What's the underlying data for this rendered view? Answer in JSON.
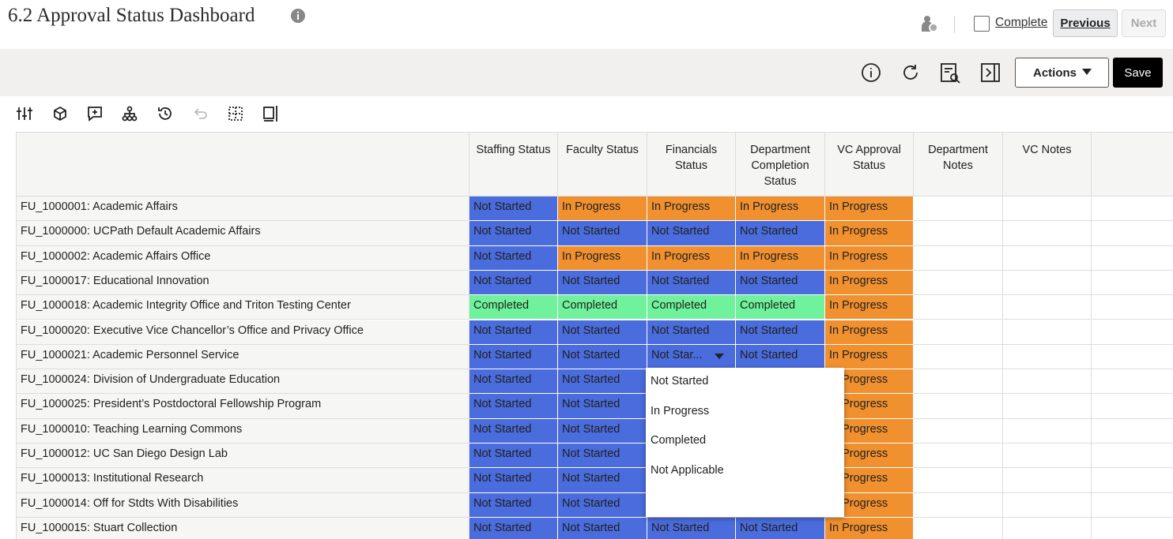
{
  "header": {
    "title": "6.2 Approval Status Dashboard",
    "complete_label": "Complete",
    "previous_button": "Previous",
    "next_button": "Next"
  },
  "toolbar": {
    "actions_button": "Actions",
    "save_button": "Save"
  },
  "status_colors": {
    "Not Started": "#4a6cdc",
    "In Progress": "#f0902e",
    "Completed": "#6ff29b",
    "Not Star...": "#4a6cdc"
  },
  "table": {
    "columns": [
      "Staffing Status",
      "Faculty Status",
      "Financials Status",
      "Department Completion Status",
      "VC Approval Status",
      "Department Notes",
      "VC Notes"
    ],
    "rows": [
      {
        "label": "FU_1000001: Academic Affairs",
        "cells": [
          "Not Started",
          "In Progress",
          "In Progress",
          "In Progress",
          "In Progress"
        ]
      },
      {
        "label": "FU_1000000: UCPath Default Academic Affairs",
        "cells": [
          "Not Started",
          "Not Started",
          "Not Started",
          "Not Started",
          "In Progress"
        ]
      },
      {
        "label": "FU_1000002: Academic Affairs Office",
        "cells": [
          "Not Started",
          "In Progress",
          "In Progress",
          "In Progress",
          "In Progress"
        ]
      },
      {
        "label": "FU_1000017: Educational Innovation",
        "cells": [
          "Not Started",
          "Not Started",
          "Not Started",
          "Not Started",
          "In Progress"
        ]
      },
      {
        "label": "FU_1000018: Academic Integrity Office and Triton Testing Center",
        "cells": [
          "Completed",
          "Completed",
          "Completed",
          "Completed",
          "In Progress"
        ]
      },
      {
        "label": "FU_1000020: Executive Vice Chancellor’s Office and Privacy Office",
        "cells": [
          "Not Started",
          "Not Started",
          "Not Started",
          "Not Started",
          "In Progress"
        ]
      },
      {
        "label": "FU_1000021: Academic Personnel Service",
        "cells": [
          "Not Started",
          "Not Started",
          "Not Star...",
          "Not Started",
          "In Progress"
        ]
      },
      {
        "label": "FU_1000024: Division of Undergraduate Education",
        "cells": [
          "Not Started",
          "Not Started",
          null,
          null,
          "In Progress"
        ]
      },
      {
        "label": "FU_1000025: President’s Postdoctoral Fellowship Program",
        "cells": [
          "Not Started",
          "Not Started",
          null,
          null,
          "In Progress"
        ]
      },
      {
        "label": "FU_1000010: Teaching Learning Commons",
        "cells": [
          "Not Started",
          "Not Started",
          null,
          null,
          "In Progress"
        ]
      },
      {
        "label": "FU_1000012: UC San Diego Design Lab",
        "cells": [
          "Not Started",
          "Not Started",
          null,
          null,
          "In Progress"
        ]
      },
      {
        "label": "FU_1000013: Institutional Research",
        "cells": [
          "Not Started",
          "Not Started",
          null,
          null,
          "In Progress"
        ]
      },
      {
        "label": "FU_1000014: Off for Stdts With Disabilities",
        "cells": [
          "Not Started",
          "Not Started",
          null,
          null,
          "In Progress"
        ]
      },
      {
        "label": "FU_1000015: Stuart Collection",
        "cells": [
          "Not Started",
          "Not Started",
          "Not Started",
          "Not Started",
          "In Progress"
        ]
      }
    ]
  },
  "dropdown": {
    "options": [
      "Not Started",
      "In Progress",
      "Completed",
      "Not Applicable"
    ]
  }
}
